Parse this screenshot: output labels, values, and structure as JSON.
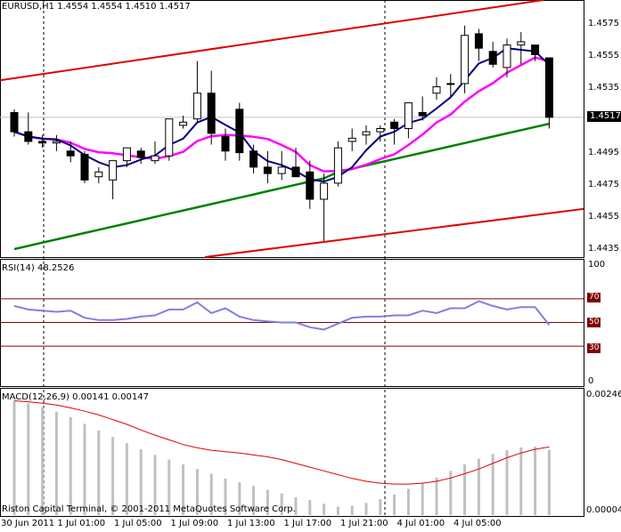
{
  "header": {
    "symbol": "EURUSD,H1",
    "ohlc": "1.4554 1.4554 1.4510 1.4517"
  },
  "rsi_title": "RSI(14) 48.2526",
  "macd_title": "MACD(12,26,9) 0.00141 0.00147",
  "copyright": "Riston Capital Terminal, © 2001-2011 MetaQuotes Software Corp.",
  "current_price": "1.4517",
  "rsi_levels": {
    "l70": "70",
    "l50": "50",
    "l30": "30",
    "top": "100",
    "bottom": "0"
  },
  "macd_scale": {
    "top": "0.00246",
    "bottom": "0.00004"
  },
  "colors": {
    "channel": "#e00000",
    "ma_fast": "#000080",
    "ma_mid": "#ff00ff",
    "ma_slow": "#008000",
    "rsi": "#8080e0",
    "macd_signal": "#e00000",
    "macd_hist": "#c0c0c0"
  },
  "chart_data": [
    {
      "type": "candlestick",
      "x_labels": [
        "30 Jun 2011",
        "1 Jul 01:00",
        "1 Jul 05:00",
        "1 Jul 09:00",
        "1 Jul 13:00",
        "1 Jul 17:00",
        "1 Jul 21:00",
        "4 Jul 01:00",
        "4 Jul 05:00"
      ],
      "y_ticks": [
        "1.4575",
        "1.4555",
        "1.4535",
        "1.4517",
        "1.4495",
        "1.4475",
        "1.4455",
        "1.4435"
      ],
      "ylim": [
        1.443,
        1.459
      ],
      "candles": [
        [
          1.452,
          1.4522,
          1.4505,
          1.4508
        ],
        [
          1.4508,
          1.452,
          1.45,
          1.4502
        ],
        [
          1.4502,
          1.4506,
          1.4498,
          1.4501
        ],
        [
          1.4501,
          1.4506,
          1.4496,
          1.4502
        ],
        [
          1.4496,
          1.4502,
          1.4489,
          1.4493
        ],
        [
          1.4494,
          1.4496,
          1.4476,
          1.4478
        ],
        [
          1.448,
          1.4486,
          1.4476,
          1.4483
        ],
        [
          1.4478,
          1.449,
          1.4466,
          1.449
        ],
        [
          1.449,
          1.4498,
          1.4486,
          1.4498
        ],
        [
          1.4496,
          1.4498,
          1.4488,
          1.4492
        ],
        [
          1.449,
          1.4502,
          1.4488,
          1.4493
        ],
        [
          1.4493,
          1.4516,
          1.449,
          1.4516
        ],
        [
          1.4512,
          1.4518,
          1.451,
          1.4514
        ],
        [
          1.4516,
          1.4552,
          1.4514,
          1.4532
        ],
        [
          1.4532,
          1.4546,
          1.45,
          1.4507
        ],
        [
          1.4505,
          1.451,
          1.449,
          1.4496
        ],
        [
          1.4522,
          1.4526,
          1.449,
          1.4495
        ],
        [
          1.4496,
          1.45,
          1.4482,
          1.4486
        ],
        [
          1.4486,
          1.4496,
          1.4476,
          1.4482
        ],
        [
          1.4482,
          1.4496,
          1.4478,
          1.4486
        ],
        [
          1.4486,
          1.4498,
          1.448,
          1.448
        ],
        [
          1.4483,
          1.449,
          1.446,
          1.4466
        ],
        [
          1.4466,
          1.4482,
          1.444,
          1.4476
        ],
        [
          1.4476,
          1.4502,
          1.4474,
          1.4498
        ],
        [
          1.4502,
          1.451,
          1.4496,
          1.4504
        ],
        [
          1.4506,
          1.4512,
          1.45,
          1.4508
        ],
        [
          1.4508,
          1.4512,
          1.4502,
          1.451
        ],
        [
          1.4514,
          1.4516,
          1.45,
          1.451
        ],
        [
          1.451,
          1.4526,
          1.4504,
          1.4526
        ],
        [
          1.452,
          1.453,
          1.4515,
          1.4518
        ],
        [
          1.4532,
          1.4542,
          1.4528,
          1.4536
        ],
        [
          1.4538,
          1.4544,
          1.453,
          1.4538
        ],
        [
          1.4538,
          1.4574,
          1.4532,
          1.4568
        ],
        [
          1.4569,
          1.4572,
          1.4552,
          1.456
        ],
        [
          1.4558,
          1.4564,
          1.4548,
          1.455
        ],
        [
          1.4548,
          1.4566,
          1.4542,
          1.4562
        ],
        [
          1.4562,
          1.457,
          1.455,
          1.4564
        ],
        [
          1.4562,
          1.4562,
          1.4552,
          1.4556
        ],
        [
          1.4554,
          1.4554,
          1.451,
          1.4517
        ]
      ]
    },
    {
      "type": "line",
      "title": "RSI(14)",
      "ylim": [
        0,
        100
      ],
      "levels": [
        70,
        50,
        30
      ],
      "values": [
        64,
        61,
        60,
        59,
        60,
        54,
        52,
        52,
        53,
        55,
        56,
        61,
        61,
        67,
        58,
        62,
        55,
        52,
        51,
        50,
        50,
        46,
        44,
        49,
        54,
        55,
        55,
        56,
        56,
        60,
        58,
        62,
        62,
        68,
        64,
        61,
        63,
        63,
        48
      ]
    },
    {
      "type": "bar+line",
      "title": "MACD(12,26,9)",
      "ylim": [
        4e-05,
        0.00246
      ],
      "histogram": [
        0.00245,
        0.0024,
        0.00232,
        0.00222,
        0.0021,
        0.00196,
        0.00182,
        0.00168,
        0.00155,
        0.00142,
        0.0013,
        0.0012,
        0.0011,
        0.001,
        0.0009,
        0.0008,
        0.00072,
        0.00064,
        0.00056,
        0.00048,
        0.0004,
        0.00034,
        0.00026,
        0.0002,
        0.00022,
        0.00028,
        0.00036,
        0.00046,
        0.00058,
        0.0007,
        0.00082,
        0.00096,
        0.0011,
        0.00122,
        0.00132,
        0.0014,
        0.00146,
        0.00148,
        0.00141
      ],
      "signal": [
        0.00245,
        0.00243,
        0.0024,
        0.00236,
        0.0023,
        0.00223,
        0.00215,
        0.00205,
        0.00195,
        0.00183,
        0.00172,
        0.00162,
        0.00152,
        0.00145,
        0.0014,
        0.00137,
        0.00134,
        0.0013,
        0.00126,
        0.0012,
        0.00112,
        0.00104,
        0.00096,
        0.00088,
        0.0008,
        0.00074,
        0.0007,
        0.00068,
        0.00068,
        0.0007,
        0.00074,
        0.00081,
        0.0009,
        0.001,
        0.00112,
        0.00124,
        0.00134,
        0.00142,
        0.00147
      ]
    }
  ]
}
